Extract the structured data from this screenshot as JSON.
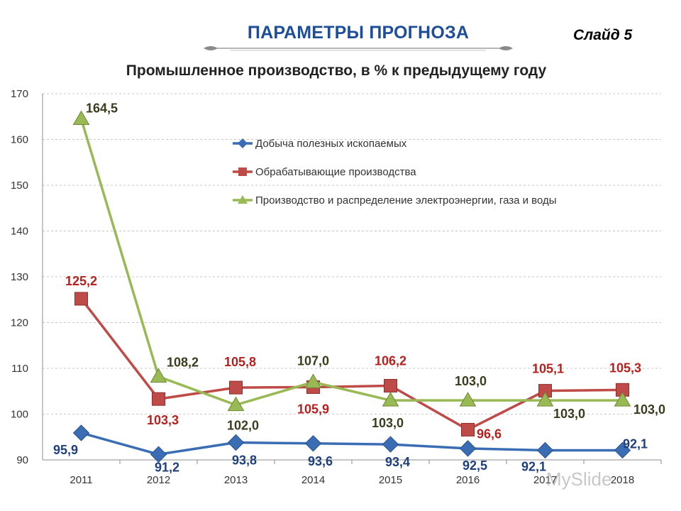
{
  "slide": {
    "title": "ПАРАМЕТРЫ ПРОГНОЗА",
    "number_label": "Слайд 5",
    "title_color": "#1f4e99"
  },
  "chart_data": {
    "type": "line",
    "title": "Промышленное производство, в % к предыдущему году",
    "xlabel": "",
    "ylabel": "",
    "categories": [
      "2011",
      "2012",
      "2013",
      "2014",
      "2015",
      "2016",
      "2017",
      "2018"
    ],
    "ylim": [
      90,
      170
    ],
    "yticks": [
      90,
      100,
      110,
      120,
      130,
      140,
      150,
      160,
      170
    ],
    "grid": true,
    "legend_position": "top-right",
    "series": [
      {
        "name": "Добыча полезных ископаемых",
        "values": [
          95.9,
          91.2,
          93.8,
          93.6,
          93.4,
          92.5,
          92.1,
          92.1
        ],
        "labels": [
          "95,9",
          "91,2",
          "93,8",
          "93,6",
          "93,4",
          "92,5",
          "92,1",
          "92,1"
        ],
        "color": "#3a6db3",
        "label_color": "#1f3f7a",
        "marker": "diamond"
      },
      {
        "name": "Обрабатывающие производства",
        "values": [
          125.2,
          103.3,
          105.8,
          105.9,
          106.2,
          96.6,
          105.1,
          105.3
        ],
        "labels": [
          "125,2",
          "103,3",
          "105,8",
          "105,9",
          "106,2",
          "96,6",
          "105,1",
          "105,3"
        ],
        "color": "#be4b48",
        "label_color": "#b81f1f",
        "marker": "square"
      },
      {
        "name": "Производство и распределение электроэнергии, газа и воды",
        "values": [
          164.5,
          108.2,
          102.0,
          107.0,
          103.0,
          103.0,
          103.0,
          103.0
        ],
        "labels": [
          "164,5",
          "108,2",
          "102,0",
          "107,0",
          "103,0",
          "103,0",
          "103,0",
          "103,0"
        ],
        "color": "#98b954",
        "label_color": "#3b3b1e",
        "marker": "triangle"
      }
    ]
  },
  "watermark": "MySlide"
}
